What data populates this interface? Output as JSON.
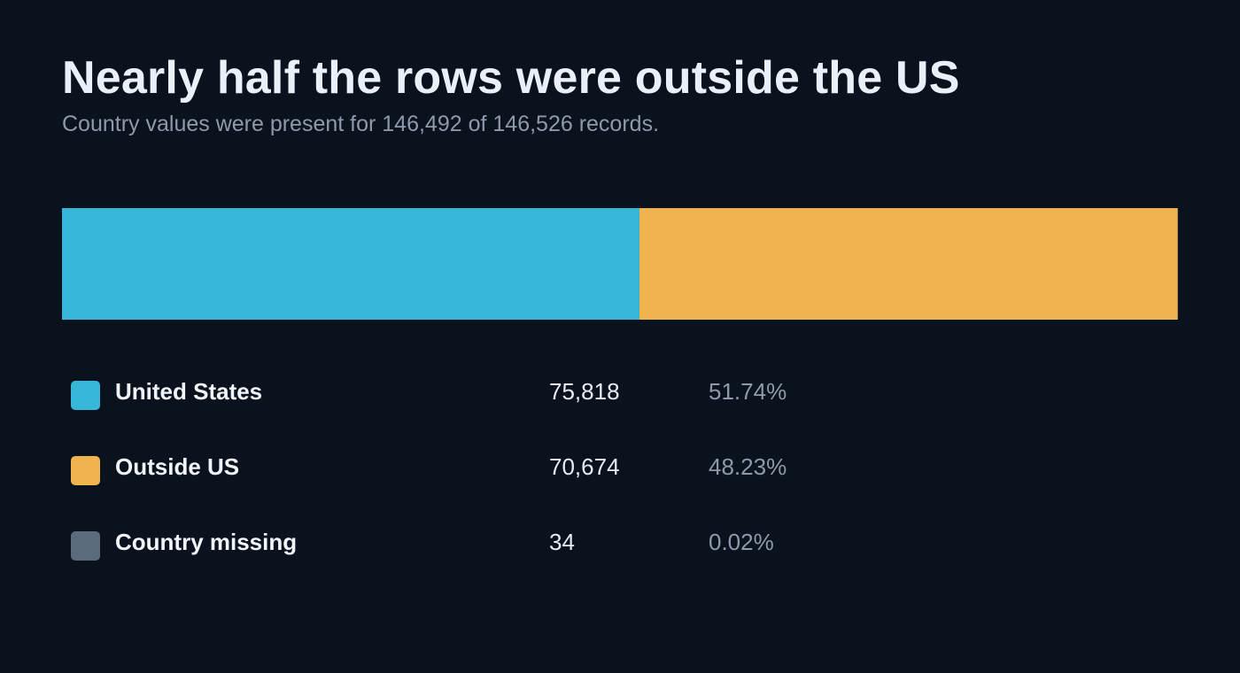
{
  "chart_data": {
    "type": "bar",
    "orientation": "stacked-horizontal",
    "title": "Nearly half the rows were outside the US",
    "subtitle": "Country values were present for 146,492 of 146,526 records.",
    "total": 146526,
    "series": [
      {
        "name": "United States",
        "value": 75818,
        "count_label": "75,818",
        "pct_label": "51.74%",
        "color": "#38b8d8"
      },
      {
        "name": "Outside US",
        "value": 70674,
        "count_label": "70,674",
        "pct_label": "48.23%",
        "color": "#f0b34e"
      },
      {
        "name": "Country missing",
        "value": 34,
        "count_label": "34",
        "pct_label": "0.02%",
        "color": "#5c6b7b"
      }
    ]
  }
}
